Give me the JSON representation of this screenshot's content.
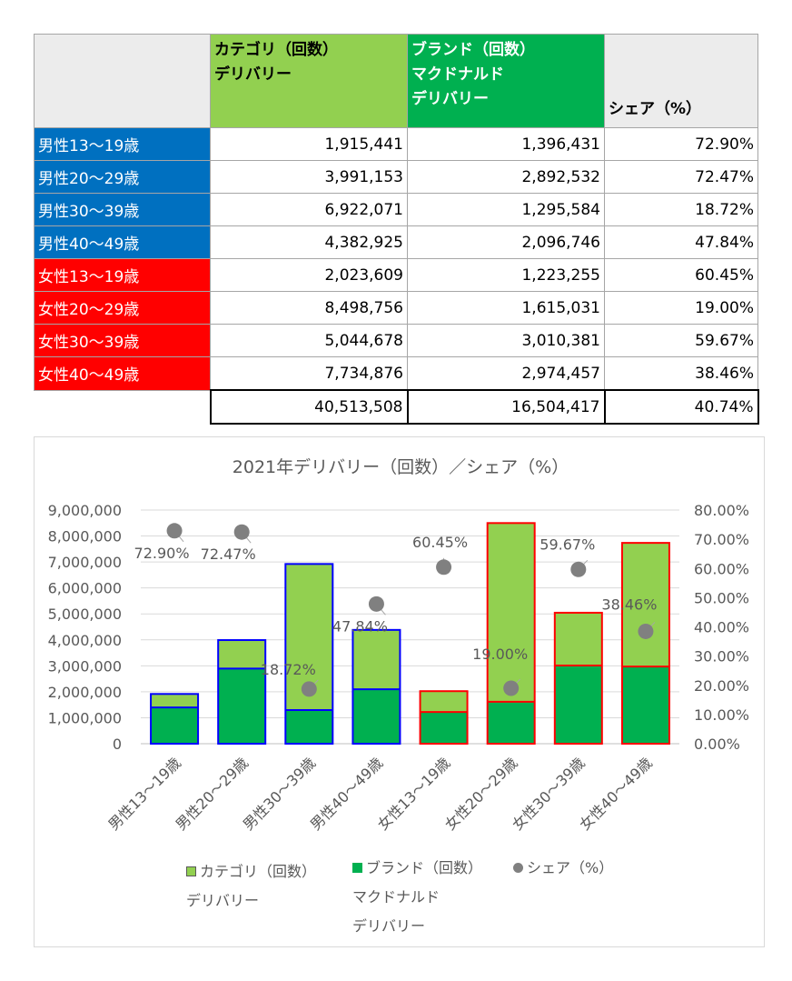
{
  "table": {
    "headers": [
      "",
      "カテゴリ（回数）\nデリバリー",
      "ブランド（回数）\nマクドナルド\nデリバリー",
      "シェア（%）"
    ],
    "rows": [
      {
        "label": "男性13～19歳",
        "group": "male",
        "category": "1,915,441",
        "brand": "1,396,431",
        "share": "72.90%"
      },
      {
        "label": "男性20～29歳",
        "group": "male",
        "category": "3,991,153",
        "brand": "2,892,532",
        "share": "72.47%"
      },
      {
        "label": "男性30～39歳",
        "group": "male",
        "category": "6,922,071",
        "brand": "1,295,584",
        "share": "18.72%"
      },
      {
        "label": "男性40～49歳",
        "group": "male",
        "category": "4,382,925",
        "brand": "2,096,746",
        "share": "47.84%"
      },
      {
        "label": "女性13～19歳",
        "group": "female",
        "category": "2,023,609",
        "brand": "1,223,255",
        "share": "60.45%"
      },
      {
        "label": "女性20～29歳",
        "group": "female",
        "category": "8,498,756",
        "brand": "1,615,031",
        "share": "19.00%"
      },
      {
        "label": "女性30～39歳",
        "group": "female",
        "category": "5,044,678",
        "brand": "3,010,381",
        "share": "59.67%"
      },
      {
        "label": "女性40～49歳",
        "group": "female",
        "category": "7,734,876",
        "brand": "2,974,457",
        "share": "38.46%"
      }
    ],
    "total": {
      "category": "40,513,508",
      "brand": "16,504,417",
      "share": "40.74%"
    },
    "colors": {
      "male": "#0070c0",
      "female": "#ff0000",
      "category": "#92d050",
      "brand": "#00b050"
    }
  },
  "chart_data": {
    "type": "bar",
    "title": "2021年デリバリー（回数）／シェア（%）",
    "categories": [
      "男性13～19歳",
      "男性20～29歳",
      "男性30～39歳",
      "男性40～49歳",
      "女性13～19歳",
      "女性20～29歳",
      "女性30～39歳",
      "女性40～49歳"
    ],
    "series": [
      {
        "name": "カテゴリ（回数）\nデリバリー",
        "kind": "bar",
        "axis": "left",
        "color": "#92d050",
        "values": [
          1915441,
          3991153,
          6922071,
          4382925,
          2023609,
          8498756,
          5044678,
          7734876
        ]
      },
      {
        "name": "ブランド（回数）\nマクドナルド\nデリバリー",
        "kind": "bar",
        "axis": "left",
        "color": "#00b050",
        "values": [
          1396431,
          2892532,
          1295584,
          2096746,
          1223255,
          1615031,
          3010381,
          2974457
        ]
      },
      {
        "name": "シェア（%）",
        "kind": "scatter",
        "axis": "right",
        "color": "#808080",
        "values": [
          72.9,
          72.47,
          18.72,
          47.84,
          60.45,
          19.0,
          59.67,
          38.46
        ],
        "labels": [
          "72.90%",
          "72.47%",
          "18.72%",
          "47.84%",
          "60.45%",
          "19.00%",
          "59.67%",
          "38.46%"
        ]
      }
    ],
    "bar_outline_colors": [
      "#0000ff",
      "#0000ff",
      "#0000ff",
      "#0000ff",
      "#ff0000",
      "#ff0000",
      "#ff0000",
      "#ff0000"
    ],
    "ylim": [
      0,
      9000000
    ],
    "y_ticks": [
      "0",
      "1,000,000",
      "2,000,000",
      "3,000,000",
      "4,000,000",
      "5,000,000",
      "6,000,000",
      "7,000,000",
      "8,000,000",
      "9,000,000"
    ],
    "y2lim": [
      0,
      80
    ],
    "y2_ticks": [
      "0.00%",
      "10.00%",
      "20.00%",
      "30.00%",
      "40.00%",
      "50.00%",
      "60.00%",
      "70.00%",
      "80.00%"
    ],
    "grid": true,
    "legend_position": "bottom"
  }
}
